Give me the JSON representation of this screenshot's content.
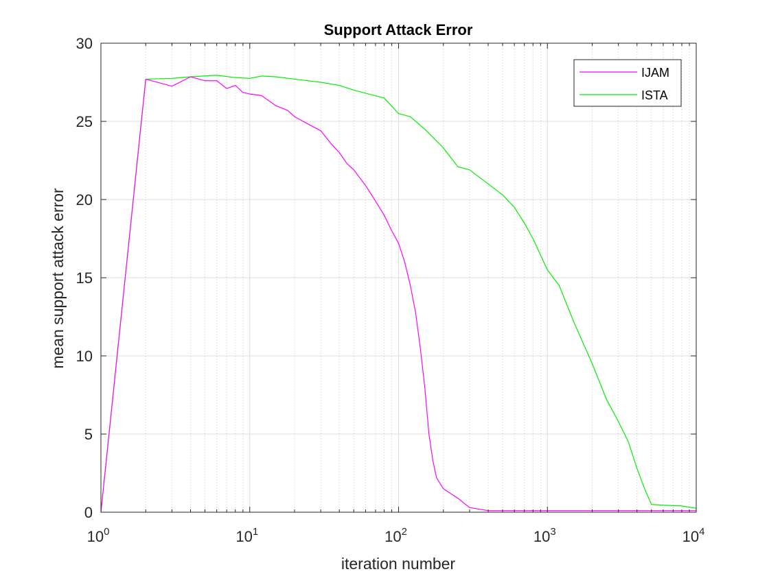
{
  "chart_data": {
    "type": "line",
    "title": "Support Attack Error",
    "xlabel": "iteration number",
    "ylabel": "mean support attack error",
    "xscale": "log",
    "xlim": [
      1,
      10000
    ],
    "ylim": [
      0,
      30
    ],
    "x_tick_labels": [
      {
        "value": 1,
        "base": "10",
        "exp": "0"
      },
      {
        "value": 10,
        "base": "10",
        "exp": "1"
      },
      {
        "value": 100,
        "base": "10",
        "exp": "2"
      },
      {
        "value": 1000,
        "base": "10",
        "exp": "3"
      },
      {
        "value": 10000,
        "base": "10",
        "exp": "4"
      }
    ],
    "y_ticks": [
      0,
      5,
      10,
      15,
      20,
      25,
      30
    ],
    "grid": true,
    "legend_position": "top-right",
    "series": [
      {
        "name": "IJAM",
        "color": "#ff00ff",
        "points": [
          [
            1,
            0
          ],
          [
            2,
            27.7
          ],
          [
            3,
            27.25
          ],
          [
            4,
            27.85
          ],
          [
            5,
            27.6
          ],
          [
            6,
            27.6
          ],
          [
            7,
            27.1
          ],
          [
            8,
            27.3
          ],
          [
            9,
            26.85
          ],
          [
            10,
            26.75
          ],
          [
            12,
            26.65
          ],
          [
            15,
            26.0
          ],
          [
            18,
            25.7
          ],
          [
            20,
            25.3
          ],
          [
            25,
            24.8
          ],
          [
            30,
            24.4
          ],
          [
            35,
            23.6
          ],
          [
            40,
            23.0
          ],
          [
            45,
            22.3
          ],
          [
            50,
            21.9
          ],
          [
            60,
            20.9
          ],
          [
            70,
            19.9
          ],
          [
            80,
            19.0
          ],
          [
            90,
            18.0
          ],
          [
            100,
            17.2
          ],
          [
            110,
            16.0
          ],
          [
            120,
            14.5
          ],
          [
            130,
            12.8
          ],
          [
            140,
            10.5
          ],
          [
            150,
            8.0
          ],
          [
            160,
            5.0
          ],
          [
            170,
            3.3
          ],
          [
            180,
            2.2
          ],
          [
            200,
            1.5
          ],
          [
            250,
            0.9
          ],
          [
            300,
            0.3
          ],
          [
            400,
            0.1
          ],
          [
            1000,
            0.1
          ],
          [
            10000,
            0.1
          ]
        ]
      },
      {
        "name": "ISTA",
        "color": "#00ee00",
        "points": [
          [
            1,
            0
          ],
          [
            2,
            27.7
          ],
          [
            3,
            27.75
          ],
          [
            4,
            27.85
          ],
          [
            6,
            27.95
          ],
          [
            8,
            27.8
          ],
          [
            10,
            27.75
          ],
          [
            12,
            27.9
          ],
          [
            15,
            27.85
          ],
          [
            20,
            27.7
          ],
          [
            30,
            27.5
          ],
          [
            40,
            27.3
          ],
          [
            50,
            27.0
          ],
          [
            60,
            26.8
          ],
          [
            80,
            26.5
          ],
          [
            100,
            25.5
          ],
          [
            120,
            25.3
          ],
          [
            150,
            24.5
          ],
          [
            200,
            23.3
          ],
          [
            250,
            22.1
          ],
          [
            300,
            21.9
          ],
          [
            400,
            21.0
          ],
          [
            500,
            20.3
          ],
          [
            600,
            19.5
          ],
          [
            700,
            18.5
          ],
          [
            800,
            17.5
          ],
          [
            1000,
            15.5
          ],
          [
            1200,
            14.5
          ],
          [
            1500,
            12.2
          ],
          [
            2000,
            9.5
          ],
          [
            2500,
            7.2
          ],
          [
            3000,
            5.8
          ],
          [
            3500,
            4.5
          ],
          [
            4000,
            2.8
          ],
          [
            4500,
            1.5
          ],
          [
            5000,
            0.5
          ],
          [
            6000,
            0.45
          ],
          [
            8000,
            0.4
          ],
          [
            10000,
            0.25
          ]
        ]
      }
    ]
  }
}
